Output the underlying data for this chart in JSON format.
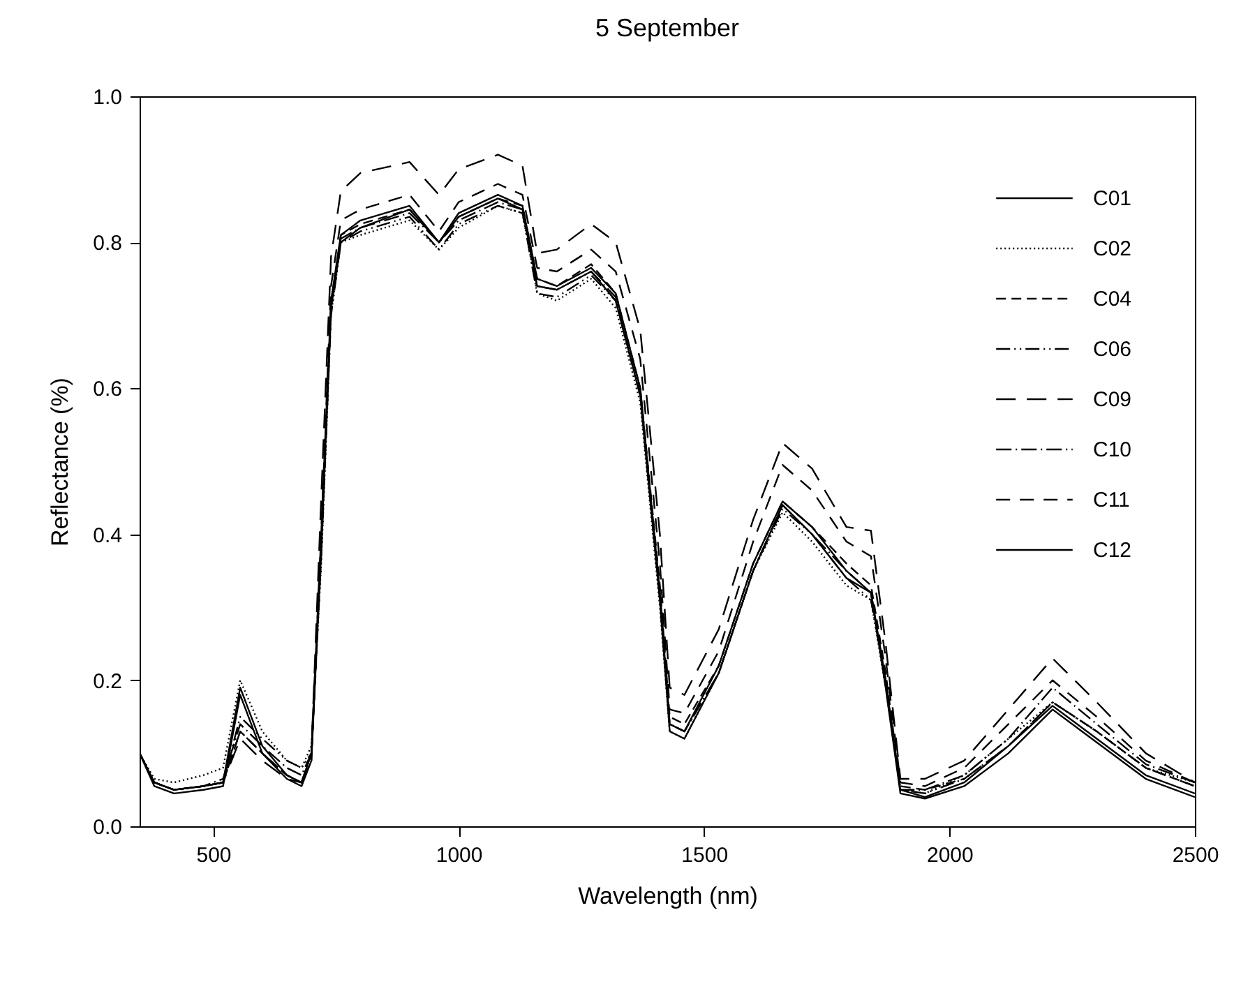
{
  "chart_data": {
    "type": "line",
    "title": "5 September",
    "xlabel": "Wavelength (nm)",
    "ylabel": "Reflectance (%)",
    "x": [
      350,
      380,
      420,
      480,
      520,
      555,
      600,
      650,
      680,
      700,
      720,
      740,
      760,
      800,
      900,
      960,
      1000,
      1080,
      1130,
      1160,
      1200,
      1270,
      1320,
      1370,
      1410,
      1430,
      1460,
      1530,
      1600,
      1660,
      1720,
      1790,
      1840,
      1870,
      1900,
      1950,
      2030,
      2120,
      2210,
      2300,
      2400,
      2500
    ],
    "series": [
      {
        "name": "C01",
        "color": "#000000",
        "line_style": "solid",
        "values": [
          0.1,
          0.06,
          0.05,
          0.055,
          0.06,
          0.19,
          0.11,
          0.07,
          0.06,
          0.1,
          0.4,
          0.72,
          0.81,
          0.83,
          0.85,
          0.8,
          0.84,
          0.865,
          0.85,
          0.75,
          0.74,
          0.765,
          0.73,
          0.6,
          0.32,
          0.14,
          0.13,
          0.22,
          0.36,
          0.445,
          0.41,
          0.35,
          0.32,
          0.2,
          0.05,
          0.04,
          0.06,
          0.11,
          0.165,
          0.12,
          0.07,
          0.045
        ]
      },
      {
        "name": "C02",
        "color": "#000000",
        "line_style": "dotted",
        "values": [
          0.1,
          0.065,
          0.06,
          0.07,
          0.08,
          0.2,
          0.13,
          0.09,
          0.08,
          0.11,
          0.36,
          0.7,
          0.8,
          0.81,
          0.83,
          0.79,
          0.82,
          0.85,
          0.84,
          0.73,
          0.72,
          0.75,
          0.71,
          0.58,
          0.3,
          0.13,
          0.12,
          0.21,
          0.35,
          0.43,
          0.39,
          0.33,
          0.31,
          0.19,
          0.05,
          0.045,
          0.07,
          0.12,
          0.17,
          0.13,
          0.08,
          0.06
        ]
      },
      {
        "name": "C04",
        "color": "#000000",
        "line_style": "dashed",
        "values": [
          0.1,
          0.06,
          0.05,
          0.055,
          0.06,
          0.13,
          0.1,
          0.07,
          0.06,
          0.09,
          0.37,
          0.71,
          0.81,
          0.825,
          0.845,
          0.8,
          0.835,
          0.86,
          0.85,
          0.75,
          0.74,
          0.77,
          0.73,
          0.6,
          0.33,
          0.15,
          0.14,
          0.22,
          0.36,
          0.445,
          0.41,
          0.36,
          0.33,
          0.21,
          0.055,
          0.05,
          0.065,
          0.11,
          0.17,
          0.13,
          0.08,
          0.055
        ]
      },
      {
        "name": "C06",
        "color": "#000000",
        "line_style": "dashdotdot",
        "values": [
          0.1,
          0.06,
          0.05,
          0.055,
          0.06,
          0.15,
          0.12,
          0.09,
          0.08,
          0.1,
          0.37,
          0.7,
          0.8,
          0.815,
          0.835,
          0.79,
          0.825,
          0.85,
          0.84,
          0.73,
          0.725,
          0.755,
          0.72,
          0.59,
          0.31,
          0.14,
          0.13,
          0.21,
          0.35,
          0.435,
          0.4,
          0.34,
          0.31,
          0.2,
          0.05,
          0.045,
          0.065,
          0.11,
          0.17,
          0.13,
          0.08,
          0.055
        ]
      },
      {
        "name": "C09",
        "color": "#000000",
        "line_style": "longdash",
        "values": [
          0.1,
          0.06,
          0.05,
          0.055,
          0.06,
          0.12,
          0.09,
          0.065,
          0.06,
          0.1,
          0.45,
          0.78,
          0.87,
          0.895,
          0.91,
          0.865,
          0.9,
          0.92,
          0.905,
          0.785,
          0.79,
          0.825,
          0.8,
          0.68,
          0.4,
          0.19,
          0.18,
          0.27,
          0.42,
          0.525,
          0.49,
          0.41,
          0.405,
          0.25,
          0.065,
          0.065,
          0.09,
          0.16,
          0.23,
          0.17,
          0.1,
          0.06
        ]
      },
      {
        "name": "C10",
        "color": "#000000",
        "line_style": "dashdot",
        "values": [
          0.1,
          0.06,
          0.05,
          0.055,
          0.065,
          0.14,
          0.11,
          0.08,
          0.07,
          0.1,
          0.38,
          0.71,
          0.805,
          0.82,
          0.84,
          0.8,
          0.83,
          0.855,
          0.845,
          0.74,
          0.735,
          0.76,
          0.725,
          0.6,
          0.32,
          0.14,
          0.13,
          0.21,
          0.35,
          0.44,
          0.4,
          0.35,
          0.32,
          0.2,
          0.05,
          0.05,
          0.07,
          0.12,
          0.19,
          0.14,
          0.085,
          0.06
        ]
      },
      {
        "name": "C11",
        "color": "#000000",
        "line_style": "mediumdash",
        "values": [
          0.1,
          0.06,
          0.05,
          0.055,
          0.06,
          0.13,
          0.1,
          0.07,
          0.06,
          0.1,
          0.4,
          0.74,
          0.83,
          0.845,
          0.865,
          0.815,
          0.855,
          0.88,
          0.865,
          0.765,
          0.76,
          0.79,
          0.76,
          0.64,
          0.36,
          0.16,
          0.155,
          0.24,
          0.39,
          0.495,
          0.46,
          0.39,
          0.37,
          0.23,
          0.06,
          0.055,
          0.08,
          0.14,
          0.2,
          0.15,
          0.09,
          0.06
        ]
      },
      {
        "name": "C12",
        "color": "#000000",
        "line_style": "solid",
        "values": [
          0.1,
          0.055,
          0.045,
          0.05,
          0.055,
          0.18,
          0.1,
          0.065,
          0.055,
          0.09,
          0.38,
          0.71,
          0.8,
          0.82,
          0.845,
          0.8,
          0.835,
          0.86,
          0.845,
          0.74,
          0.735,
          0.76,
          0.72,
          0.59,
          0.31,
          0.13,
          0.12,
          0.21,
          0.35,
          0.44,
          0.4,
          0.34,
          0.32,
          0.19,
          0.045,
          0.038,
          0.055,
          0.1,
          0.16,
          0.115,
          0.065,
          0.04
        ]
      }
    ],
    "xlim": [
      350,
      2500
    ],
    "xticks": [
      500,
      1000,
      1500,
      2000,
      2500
    ],
    "ylim": [
      0,
      1
    ],
    "yticks": [
      {
        "value": 0,
        "label": "0.0"
      },
      {
        "value": 0.2,
        "label": "0.2"
      },
      {
        "value": 0.4,
        "label": "0.4"
      },
      {
        "value": 0.6,
        "label": "0.6"
      },
      {
        "value": 0.8,
        "label": "0.8"
      },
      {
        "value": 1,
        "label": "1.0"
      }
    ],
    "legend": "top right"
  }
}
